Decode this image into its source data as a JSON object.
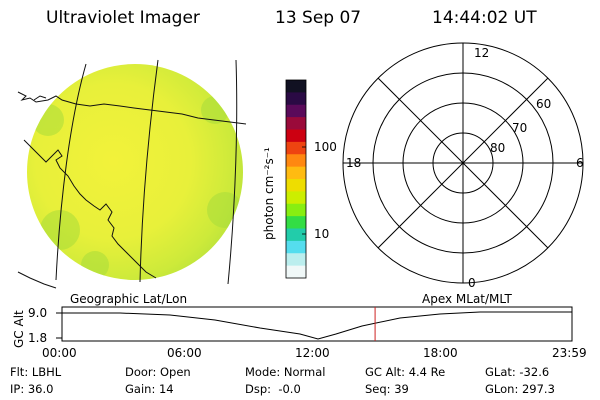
{
  "header": {
    "instrument": "Ultraviolet Imager",
    "date": "13 Sep 07",
    "time": "14:44:02 UT"
  },
  "image_panel": {
    "label": "Geographic Lat/Lon"
  },
  "colorbar": {
    "unit_label": "photon cm⁻²s⁻¹",
    "ticks": [
      "100",
      "10"
    ],
    "colors": [
      "#111122",
      "#2a0a44",
      "#5a0a5a",
      "#9a0a3a",
      "#cc0011",
      "#ee4411",
      "#ff8811",
      "#ffbb11",
      "#eedd00",
      "#ccee00",
      "#88ee11",
      "#33dd44",
      "#22ccaa",
      "#55ddee",
      "#bbeeee",
      "#f0f8f8"
    ]
  },
  "polar_plot": {
    "label": "Apex MLat/MLT",
    "mlt_labels": [
      "12",
      "18",
      "6",
      "0"
    ],
    "mlat_labels": [
      "60",
      "70",
      "80"
    ]
  },
  "altitude_strip": {
    "ylabel": "GC Alt",
    "y_ticks": [
      "9.0",
      "1.8"
    ],
    "x_ticks": [
      "00:00",
      "06:00",
      "12:00",
      "18:00",
      "23:59"
    ],
    "marker_time": "14:44",
    "marker_color": "#cc2222"
  },
  "status": {
    "row1": [
      "Flt: LBHL",
      "Door: Open",
      "Mode: Normal",
      "GC Alt: 4.4 Re",
      "GLat: -32.6"
    ],
    "row2": [
      "IP: 36.0",
      "Gain: 14",
      "Dsp:  -0.0",
      "Seq: 39",
      "GLon: 297.3"
    ]
  }
}
